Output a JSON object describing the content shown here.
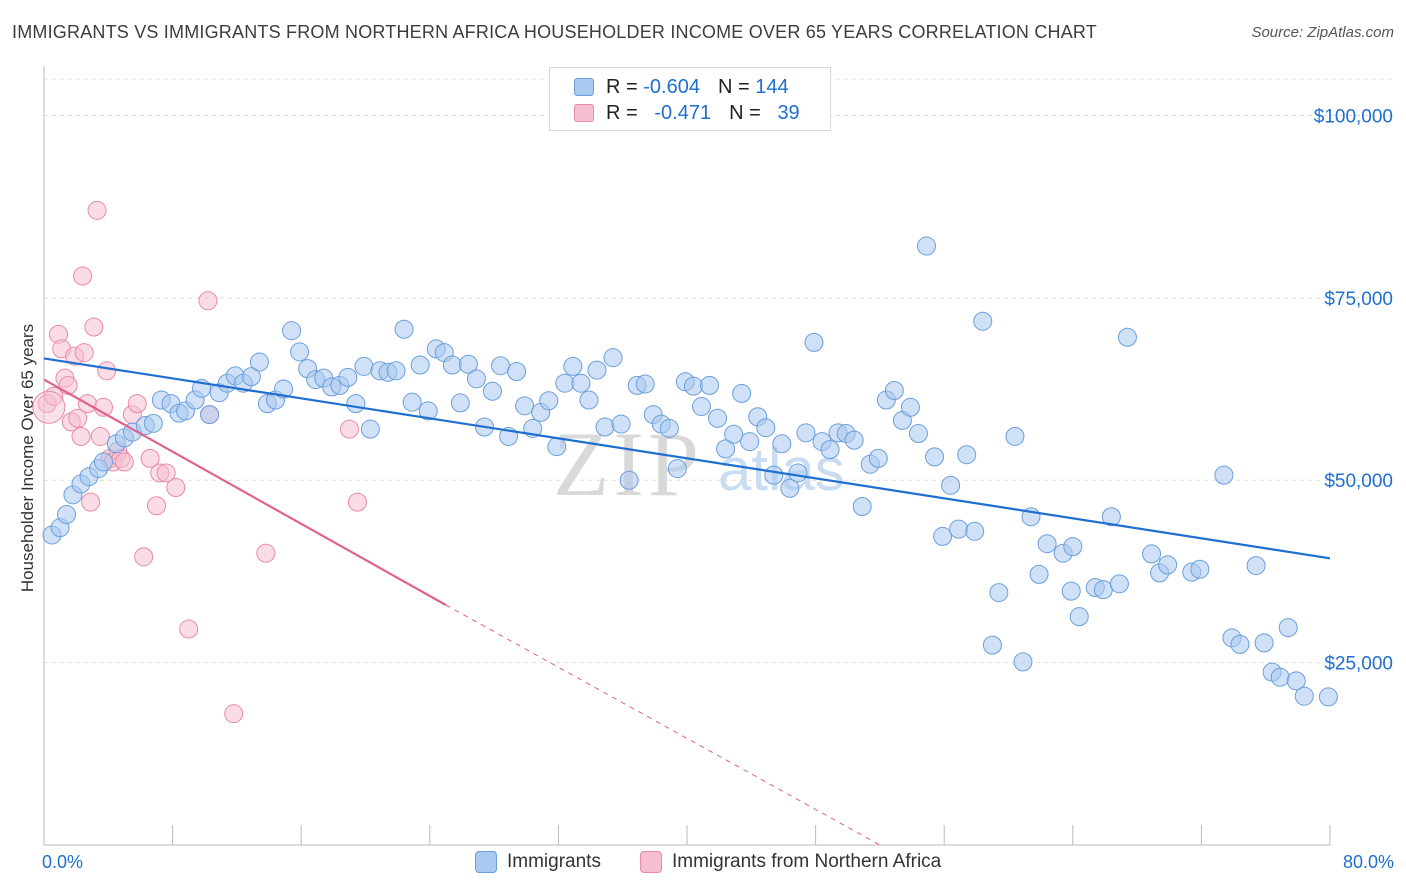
{
  "title": "IMMIGRANTS VS IMMIGRANTS FROM NORTHERN AFRICA HOUSEHOLDER INCOME OVER 65 YEARS CORRELATION CHART",
  "source": "Source: ZipAtlas.com",
  "legend": {
    "r_label": "R =",
    "n_label": "N =",
    "rows": [
      {
        "r": "-0.604",
        "n": "144"
      },
      {
        "r": "-0.471",
        "n": "39"
      }
    ]
  },
  "bottom_legend": [
    "Immigrants",
    "Immigrants from Northern Africa"
  ],
  "colors": {
    "blue_fill": "#a9c9f0",
    "blue_stroke": "#6a9fdc",
    "blue_line": "#1f6fd1",
    "pink_fill": "#f6bfd0",
    "pink_stroke": "#e98aa8",
    "pink_line": "#e0628f",
    "grid": "#dddddd",
    "tick_text": "#1f6fd1"
  },
  "chart_data": {
    "type": "scatter",
    "ylabel": "Householder Income Over 65 years",
    "xlim": [
      0,
      80
    ],
    "ylim": [
      0,
      105000
    ],
    "x_tick_labels": [
      "0.0%",
      "80.0%"
    ],
    "y_ticks": [
      25000,
      50000,
      75000,
      100000
    ],
    "y_tick_labels": [
      "$25,000",
      "$50,000",
      "$75,000",
      "$100,000"
    ],
    "grid": "horizontal dashed",
    "series": [
      {
        "name": "Immigrants",
        "r": -0.604,
        "n": 144,
        "trend": {
          "x0": 0,
          "y0": 66700,
          "x1": 80,
          "y1": 39300
        },
        "points": [
          [
            0.5,
            42500
          ],
          [
            1.0,
            43500
          ],
          [
            1.4,
            45300
          ],
          [
            1.8,
            48000
          ],
          [
            2.3,
            49500
          ],
          [
            2.8,
            50500
          ],
          [
            3.4,
            51600
          ],
          [
            3.7,
            52500
          ],
          [
            4.5,
            55000
          ],
          [
            5.0,
            55800
          ],
          [
            5.5,
            56600
          ],
          [
            6.3,
            57500
          ],
          [
            6.8,
            57800
          ],
          [
            7.3,
            61000
          ],
          [
            7.9,
            60500
          ],
          [
            8.4,
            59200
          ],
          [
            8.8,
            59500
          ],
          [
            9.4,
            61000
          ],
          [
            9.8,
            62600
          ],
          [
            10.3,
            59000
          ],
          [
            10.9,
            62000
          ],
          [
            11.4,
            63300
          ],
          [
            11.9,
            64300
          ],
          [
            12.4,
            63300
          ],
          [
            12.9,
            64200
          ],
          [
            13.4,
            66200
          ],
          [
            13.9,
            60500
          ],
          [
            14.4,
            61000
          ],
          [
            14.9,
            62500
          ],
          [
            15.4,
            70500
          ],
          [
            15.9,
            67600
          ],
          [
            16.4,
            65300
          ],
          [
            16.9,
            63800
          ],
          [
            17.4,
            64000
          ],
          [
            17.9,
            62800
          ],
          [
            18.4,
            63000
          ],
          [
            18.9,
            64100
          ],
          [
            19.4,
            60500
          ],
          [
            19.9,
            65600
          ],
          [
            20.3,
            57000
          ],
          [
            20.9,
            65000
          ],
          [
            21.4,
            64800
          ],
          [
            21.9,
            65000
          ],
          [
            22.4,
            70700
          ],
          [
            22.9,
            60700
          ],
          [
            23.4,
            65800
          ],
          [
            23.9,
            59500
          ],
          [
            24.4,
            68000
          ],
          [
            24.9,
            67500
          ],
          [
            25.4,
            65800
          ],
          [
            25.9,
            60600
          ],
          [
            26.4,
            65900
          ],
          [
            26.9,
            63900
          ],
          [
            27.4,
            57300
          ],
          [
            27.9,
            62200
          ],
          [
            28.4,
            65700
          ],
          [
            28.9,
            56000
          ],
          [
            29.4,
            64900
          ],
          [
            29.9,
            60200
          ],
          [
            30.4,
            57100
          ],
          [
            30.9,
            59300
          ],
          [
            31.4,
            60900
          ],
          [
            31.9,
            54600
          ],
          [
            32.4,
            63300
          ],
          [
            32.9,
            65600
          ],
          [
            33.4,
            63300
          ],
          [
            33.9,
            61000
          ],
          [
            34.4,
            65100
          ],
          [
            34.9,
            57300
          ],
          [
            35.4,
            66800
          ],
          [
            35.9,
            57700
          ],
          [
            36.4,
            50000
          ],
          [
            36.9,
            63000
          ],
          [
            37.4,
            63200
          ],
          [
            37.9,
            59000
          ],
          [
            38.4,
            57700
          ],
          [
            38.9,
            57100
          ],
          [
            39.4,
            51600
          ],
          [
            39.9,
            63500
          ],
          [
            40.4,
            62900
          ],
          [
            40.9,
            60100
          ],
          [
            41.4,
            63000
          ],
          [
            41.9,
            58500
          ],
          [
            42.4,
            54300
          ],
          [
            42.9,
            56300
          ],
          [
            43.4,
            61900
          ],
          [
            43.9,
            55300
          ],
          [
            44.4,
            58700
          ],
          [
            44.9,
            57200
          ],
          [
            45.4,
            50700
          ],
          [
            45.9,
            55000
          ],
          [
            46.4,
            48900
          ],
          [
            46.9,
            51000
          ],
          [
            47.4,
            56500
          ],
          [
            47.9,
            68900
          ],
          [
            48.4,
            55300
          ],
          [
            48.9,
            54200
          ],
          [
            49.4,
            56500
          ],
          [
            49.9,
            56400
          ],
          [
            50.4,
            55500
          ],
          [
            50.9,
            46400
          ],
          [
            51.4,
            52200
          ],
          [
            51.9,
            53000
          ],
          [
            52.4,
            61000
          ],
          [
            52.9,
            62300
          ],
          [
            53.4,
            58200
          ],
          [
            53.9,
            60000
          ],
          [
            54.4,
            56400
          ],
          [
            54.9,
            82100
          ],
          [
            55.4,
            53200
          ],
          [
            55.9,
            42300
          ],
          [
            56.4,
            49300
          ],
          [
            56.9,
            43300
          ],
          [
            57.4,
            53500
          ],
          [
            57.9,
            43000
          ],
          [
            58.4,
            71800
          ],
          [
            59.4,
            34600
          ],
          [
            60.4,
            56000
          ],
          [
            60.9,
            25100
          ],
          [
            61.4,
            45000
          ],
          [
            61.9,
            37100
          ],
          [
            62.4,
            41300
          ],
          [
            63.4,
            40000
          ],
          [
            63.9,
            34800
          ],
          [
            64.4,
            31300
          ],
          [
            65.4,
            35300
          ],
          [
            65.9,
            35000
          ],
          [
            66.4,
            45000
          ],
          [
            66.9,
            35800
          ],
          [
            67.4,
            69600
          ],
          [
            68.9,
            39900
          ],
          [
            69.4,
            37300
          ],
          [
            69.9,
            38400
          ],
          [
            71.4,
            37400
          ],
          [
            71.9,
            37800
          ],
          [
            73.4,
            50700
          ],
          [
            73.9,
            28400
          ],
          [
            74.4,
            27500
          ],
          [
            75.4,
            38300
          ],
          [
            75.9,
            27700
          ],
          [
            76.4,
            23700
          ],
          [
            76.9,
            23000
          ],
          [
            77.4,
            29800
          ],
          [
            77.9,
            22500
          ],
          [
            78.4,
            20400
          ],
          [
            79.9,
            20300
          ],
          [
            59.0,
            27400
          ],
          [
            64.0,
            40900
          ]
        ]
      },
      {
        "name": "Immigrants from Northern Africa",
        "r": -0.471,
        "n": 39,
        "trend": {
          "x0": 0,
          "y0": 63800,
          "x1": 25,
          "y1": 32900
        },
        "trend_extension": {
          "x0": 25,
          "y0": 32900,
          "x1": 52,
          "y1": 0
        },
        "points": [
          [
            0.2,
            60500
          ],
          [
            0.6,
            61500
          ],
          [
            0.9,
            70000
          ],
          [
            1.1,
            68000
          ],
          [
            1.3,
            64000
          ],
          [
            1.5,
            63000
          ],
          [
            1.7,
            58000
          ],
          [
            1.9,
            67000
          ],
          [
            2.1,
            58500
          ],
          [
            2.3,
            56000
          ],
          [
            2.5,
            67500
          ],
          [
            2.7,
            60500
          ],
          [
            2.9,
            47000
          ],
          [
            3.1,
            71000
          ],
          [
            3.3,
            87000
          ],
          [
            3.5,
            56000
          ],
          [
            3.7,
            60000
          ],
          [
            3.9,
            65000
          ],
          [
            4.1,
            53000
          ],
          [
            4.3,
            52500
          ],
          [
            4.6,
            54000
          ],
          [
            4.8,
            53000
          ],
          [
            5.0,
            52500
          ],
          [
            5.5,
            59000
          ],
          [
            5.8,
            60500
          ],
          [
            6.2,
            39500
          ],
          [
            6.6,
            53000
          ],
          [
            7.0,
            46500
          ],
          [
            7.2,
            51000
          ],
          [
            7.6,
            51000
          ],
          [
            8.2,
            49000
          ],
          [
            9.0,
            29600
          ],
          [
            10.2,
            74600
          ],
          [
            10.3,
            59000
          ],
          [
            11.8,
            18000
          ],
          [
            13.8,
            40000
          ],
          [
            19.0,
            57000
          ],
          [
            19.5,
            47000
          ],
          [
            2.4,
            78000
          ]
        ]
      }
    ]
  }
}
